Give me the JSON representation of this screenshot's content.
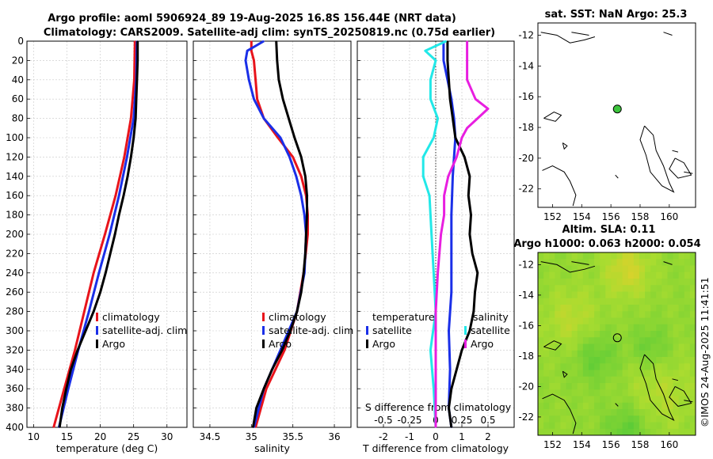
{
  "title_line1": "Argo profile: aoml 5906924_89 19-Aug-2025 16.8S 156.44E (NRT data)",
  "title_line2": "Climatology: CARS2009. Satellite-adj clim: synTS_20250819.nc (0.75d earlier)",
  "imos_stamp": "©IMOS 24-Aug-2025 11:41:51",
  "colors": {
    "clim": "#e8141b",
    "sat": "#1a2fe8",
    "argo": "#000000",
    "cyan": "#22e8e8",
    "mag": "#e81ee0"
  },
  "chart_data": [
    {
      "name": "temperature-profile",
      "type": "line",
      "xlabel": "temperature (deg C)",
      "xlim": [
        9,
        33
      ],
      "ylim": [
        0,
        400
      ],
      "xticks": [
        10,
        15,
        20,
        25,
        30
      ],
      "yticks": [
        0,
        20,
        40,
        60,
        80,
        100,
        120,
        140,
        160,
        180,
        200,
        220,
        240,
        260,
        280,
        300,
        320,
        340,
        360,
        380,
        400
      ],
      "legend": [
        "climatology",
        "satellite-adj. clim",
        "Argo"
      ],
      "series": [
        {
          "name": "climatology",
          "color_key": "clim",
          "depth": [
            0,
            40,
            80,
            120,
            160,
            200,
            240,
            280,
            320,
            360,
            400
          ],
          "values": [
            25.2,
            25.1,
            24.6,
            23.6,
            22.3,
            20.7,
            19.0,
            17.6,
            16.2,
            14.6,
            13.0
          ]
        },
        {
          "name": "satellite-adj. clim",
          "color_key": "sat",
          "depth": [
            0,
            40,
            80,
            120,
            160,
            200,
            240,
            280,
            320,
            360,
            400
          ],
          "values": [
            25.5,
            25.4,
            25.0,
            24.0,
            22.8,
            21.4,
            19.8,
            18.3,
            16.7,
            15.2,
            13.8
          ]
        },
        {
          "name": "Argo",
          "color_key": "argo",
          "depth": [
            0,
            20,
            40,
            60,
            80,
            100,
            120,
            140,
            160,
            180,
            200,
            220,
            240,
            260,
            280,
            300,
            320,
            340,
            360,
            380,
            400
          ],
          "values": [
            25.6,
            25.6,
            25.5,
            25.4,
            25.3,
            25.0,
            24.6,
            24.1,
            23.5,
            22.8,
            22.2,
            21.5,
            20.8,
            20.0,
            19.0,
            17.8,
            16.6,
            15.6,
            14.9,
            14.3,
            13.9
          ]
        }
      ]
    },
    {
      "name": "salinity-profile",
      "type": "line",
      "xlabel": "salinity",
      "xlim": [
        34.3,
        36.2
      ],
      "ylim": [
        0,
        400
      ],
      "xticks": [
        34.5,
        35,
        35.5,
        36
      ],
      "xticklabels": [
        "34.5",
        "35",
        "35.5",
        "36"
      ],
      "legend": [
        "climatology",
        "satellite-adj. clim",
        "Argo"
      ],
      "series": [
        {
          "name": "climatology",
          "color_key": "clim",
          "depth": [
            0,
            10,
            20,
            40,
            60,
            80,
            100,
            120,
            140,
            160,
            180,
            200,
            240,
            280,
            320,
            360,
            400
          ],
          "values": [
            35.0,
            35.0,
            35.03,
            35.05,
            35.07,
            35.15,
            35.32,
            35.5,
            35.6,
            35.66,
            35.68,
            35.68,
            35.63,
            35.55,
            35.4,
            35.18,
            35.05
          ]
        },
        {
          "name": "satellite-adj. clim",
          "color_key": "sat",
          "depth": [
            0,
            10,
            20,
            40,
            60,
            80,
            100,
            120,
            140,
            160,
            180,
            200,
            240,
            280,
            320,
            360,
            400
          ],
          "values": [
            35.15,
            34.95,
            34.93,
            34.97,
            35.03,
            35.15,
            35.35,
            35.46,
            35.54,
            35.6,
            35.64,
            35.66,
            35.64,
            35.55,
            35.35,
            35.15,
            35.03
          ]
        },
        {
          "name": "Argo",
          "color_key": "argo",
          "depth": [
            0,
            20,
            40,
            60,
            80,
            100,
            120,
            140,
            160,
            180,
            200,
            220,
            240,
            260,
            280,
            300,
            320,
            340,
            360,
            380,
            400
          ],
          "values": [
            35.3,
            35.31,
            35.33,
            35.38,
            35.45,
            35.52,
            35.6,
            35.65,
            35.67,
            35.67,
            35.66,
            35.65,
            35.63,
            35.6,
            35.55,
            35.47,
            35.37,
            35.25,
            35.15,
            35.06,
            35.02
          ]
        }
      ]
    },
    {
      "name": "difference-profile",
      "type": "line",
      "xlabel": "T difference from climatology",
      "xlabel2": "S difference from climatology",
      "xlim": [
        -3,
        3
      ],
      "ylim": [
        0,
        400
      ],
      "xticks": [
        -2,
        -1,
        0,
        1,
        2
      ],
      "xticklabels": [
        "-2",
        "-1",
        "0",
        "1",
        "2"
      ],
      "xticks2": [
        -0.5,
        -0.25,
        0,
        0.25,
        0.5
      ],
      "xticklabels2": [
        "-0.5",
        "-0.25",
        "0",
        "0.25",
        "0.5"
      ],
      "legend_titles": [
        "temperature",
        "salinity"
      ],
      "legend_left": [
        "satellite",
        "Argo"
      ],
      "legend_right": [
        "satellite",
        "Argo"
      ],
      "series": [
        {
          "name": "T satellite",
          "color_key": "sat",
          "depth": [
            0,
            10,
            20,
            40,
            60,
            80,
            100,
            140,
            180,
            220,
            260,
            300,
            340,
            380,
            400
          ],
          "values": [
            0.3,
            0.3,
            0.3,
            0.45,
            0.6,
            0.7,
            0.75,
            0.65,
            0.6,
            0.6,
            0.6,
            0.5,
            0.55,
            0.5,
            0.6
          ]
        },
        {
          "name": "T Argo",
          "color_key": "argo",
          "depth": [
            0,
            20,
            40,
            60,
            80,
            100,
            120,
            140,
            160,
            180,
            200,
            220,
            240,
            260,
            280,
            300,
            320,
            340,
            360,
            380,
            400
          ],
          "values": [
            0.45,
            0.45,
            0.5,
            0.55,
            0.65,
            0.75,
            1.1,
            1.3,
            1.25,
            1.35,
            1.3,
            1.4,
            1.6,
            1.5,
            1.45,
            1.3,
            1.0,
            0.8,
            0.6,
            0.5,
            0.6
          ]
        },
        {
          "name": "S satellite",
          "color_key": "cyan",
          "depth": [
            0,
            10,
            20,
            40,
            60,
            80,
            100,
            120,
            140,
            160,
            180,
            200,
            240,
            280,
            320,
            360,
            400
          ],
          "values": [
            0.1,
            -0.1,
            0.0,
            -0.05,
            -0.05,
            0.02,
            -0.02,
            -0.12,
            -0.12,
            -0.06,
            -0.05,
            -0.04,
            -0.02,
            0.0,
            -0.05,
            -0.02,
            0.0
          ]
        },
        {
          "name": "S Argo",
          "color_key": "mag",
          "depth": [
            0,
            20,
            40,
            60,
            70,
            80,
            90,
            100,
            120,
            140,
            160,
            180,
            200,
            240,
            280,
            320,
            360,
            400
          ],
          "values": [
            0.3,
            0.3,
            0.3,
            0.38,
            0.5,
            0.4,
            0.3,
            0.25,
            0.2,
            0.12,
            0.08,
            0.08,
            0.05,
            0.02,
            0.0,
            0.0,
            0.0,
            0.0
          ]
        }
      ]
    },
    {
      "name": "sst-map",
      "type": "map",
      "title": "sat. SST: NaN Argo: 25.3",
      "xlim": [
        151,
        161.8
      ],
      "ylim": [
        -23.2,
        -11.2
      ],
      "xticks": [
        152,
        154,
        156,
        158,
        160
      ],
      "yticks": [
        -12,
        -14,
        -16,
        -18,
        -20,
        -22
      ],
      "argo_lon": 156.44,
      "argo_lat": -16.8
    },
    {
      "name": "sla-map",
      "type": "heatmap",
      "title": "Altim. SLA: 0.11",
      "subtitle": "Argo h1000: 0.063 h2000: 0.054",
      "xlim": [
        151,
        161.8
      ],
      "ylim": [
        -23.2,
        -11.2
      ],
      "xticks": [
        152,
        154,
        156,
        158,
        160
      ],
      "yticks": [
        -12,
        -14,
        -16,
        -18,
        -20,
        -22
      ],
      "argo_lon": 156.44,
      "argo_lat": -16.8
    }
  ]
}
